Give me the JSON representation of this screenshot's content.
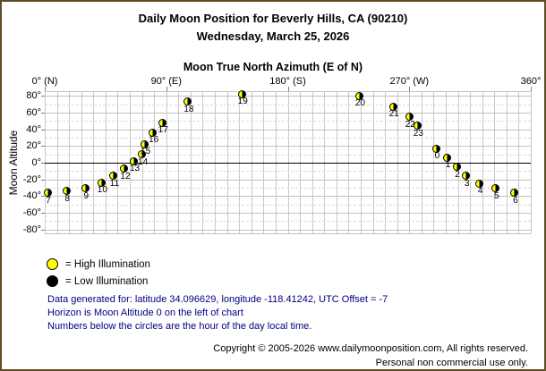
{
  "header": {
    "title": "Daily Moon Position for Beverly Hills, CA (90210)",
    "date": "Wednesday, March 25, 2026"
  },
  "chart_data": {
    "type": "scatter",
    "title": "Moon True North Azimuth (E of N)",
    "ylabel": "Moon Altitude",
    "xlim": [
      0,
      360
    ],
    "ylim": [
      -85,
      85
    ],
    "grid": {
      "vertical_step_deg": 9,
      "horizontal_major_step_deg": 20,
      "horizontal_minor_step_deg": 10,
      "minor_style": "dashed"
    },
    "x_ticks": [
      {
        "value": 0,
        "label": "0° (N)"
      },
      {
        "value": 90,
        "label": "90° (E)"
      },
      {
        "value": 180,
        "label": "180° (S)"
      },
      {
        "value": 270,
        "label": "270° (W)"
      },
      {
        "value": 360,
        "label": "360°"
      }
    ],
    "y_ticks": [
      {
        "value": 80,
        "label": "80°"
      },
      {
        "value": 60,
        "label": "60°"
      },
      {
        "value": 40,
        "label": "40°"
      },
      {
        "value": 20,
        "label": "20°"
      },
      {
        "value": 0,
        "label": "0°"
      },
      {
        "value": -20,
        "label": "-20°"
      },
      {
        "value": -40,
        "label": "-40°"
      },
      {
        "value": -60,
        "label": "-60°"
      },
      {
        "value": -80,
        "label": "-80°"
      }
    ],
    "marker": {
      "style": "half-moon-disc",
      "left_color": "#ffff00",
      "right_color": "#000000",
      "meaning": "left half yellow = illuminated, right half black = dark"
    },
    "point_label": "hour of the day local time",
    "points": [
      {
        "hour": 0,
        "azimuth": 290,
        "altitude": 17
      },
      {
        "hour": 1,
        "azimuth": 298,
        "altitude": 6
      },
      {
        "hour": 2,
        "azimuth": 305,
        "altitude": -5
      },
      {
        "hour": 3,
        "azimuth": 312,
        "altitude": -16
      },
      {
        "hour": 4,
        "azimuth": 322,
        "altitude": -25
      },
      {
        "hour": 5,
        "azimuth": 334,
        "altitude": -31
      },
      {
        "hour": 6,
        "azimuth": 348,
        "altitude": -36
      },
      {
        "hour": 7,
        "azimuth": 2,
        "altitude": -36
      },
      {
        "hour": 8,
        "azimuth": 16,
        "altitude": -34
      },
      {
        "hour": 9,
        "azimuth": 30,
        "altitude": -31
      },
      {
        "hour": 10,
        "azimuth": 42,
        "altitude": -24
      },
      {
        "hour": 11,
        "azimuth": 51,
        "altitude": -16
      },
      {
        "hour": 12,
        "azimuth": 59,
        "altitude": -7
      },
      {
        "hour": 13,
        "azimuth": 66,
        "altitude": 2
      },
      {
        "hour": 14,
        "azimuth": 72,
        "altitude": 10
      },
      {
        "hour": 15,
        "azimuth": 74,
        "altitude": 22
      },
      {
        "hour": 16,
        "azimuth": 80,
        "altitude": 36
      },
      {
        "hour": 17,
        "azimuth": 87,
        "altitude": 48
      },
      {
        "hour": 18,
        "azimuth": 106,
        "altitude": 73
      },
      {
        "hour": 19,
        "azimuth": 146,
        "altitude": 82
      },
      {
        "hour": 20,
        "azimuth": 233,
        "altitude": 80
      },
      {
        "hour": 21,
        "azimuth": 258,
        "altitude": 67
      },
      {
        "hour": 22,
        "azimuth": 270,
        "altitude": 55
      },
      {
        "hour": 23,
        "azimuth": 276,
        "altitude": 44
      }
    ]
  },
  "legend": {
    "items": [
      {
        "swatch": "#ffff00",
        "label": "= High Illumination"
      },
      {
        "swatch": "#000000",
        "label": "= Low Illumination"
      }
    ]
  },
  "notes": [
    "Data generated for: latitude 34.096629, longitude -118.41242, UTC Offset = -7",
    "Horizon is Moon Altitude 0 on the left of chart",
    "Numbers below the circles are the hour of the day local time."
  ],
  "footer": {
    "lines": [
      "Copyright © 2005-2026 www.dailymoonposition.com, All rights reserved.",
      "Personal non commercial use only."
    ]
  },
  "colors": {
    "border": "#5e4f23",
    "grid_major": "#c2c2c2",
    "grid_minor": "#d9d9d9",
    "horizon_line": "#000000",
    "note_text": "#000080",
    "moon_yellow": "#ffff00",
    "moon_dark": "#000000"
  }
}
